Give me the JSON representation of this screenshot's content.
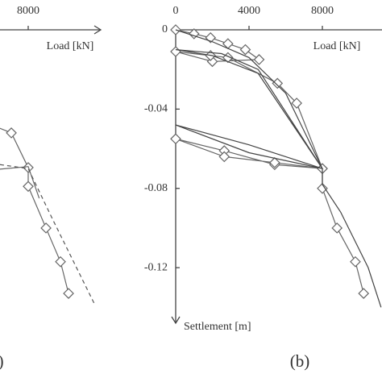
{
  "chart_data": [
    {
      "type": "line",
      "x_label": "Load [kN]",
      "panel_label": "(a)",
      "xlim": [
        0,
        12000
      ],
      "ylim": [
        -0.148,
        0
      ],
      "xticks": [
        8000
      ],
      "series": [
        {
          "color": "#666666",
          "style": "solid",
          "markers": true,
          "x": [
            5200,
            7080,
            8000,
            8000,
            8970,
            9760,
            10200
          ],
          "y": [
            -0.045,
            -0.052,
            -0.0695,
            -0.079,
            -0.1,
            -0.117,
            -0.133
          ]
        },
        {
          "color": "#666666",
          "style": "solid",
          "markers": false,
          "x": [
            5600,
            8000,
            8600
          ],
          "y": [
            -0.071,
            -0.069,
            -0.085
          ]
        },
        {
          "color": "#555555",
          "style": "dashed",
          "markers": false,
          "x": [
            6460,
            8000,
            9300,
            11650
          ],
          "y": [
            -0.068,
            -0.07,
            -0.095,
            -0.139
          ]
        }
      ]
    },
    {
      "type": "line",
      "x_label": "Load [kN]",
      "y_label": "Settlement [m]",
      "panel_label": "(b)",
      "xlim": [
        0,
        12000
      ],
      "ylim": [
        -0.148,
        0
      ],
      "xticks": [
        0,
        4000,
        8000
      ],
      "yticks": [
        0,
        -0.04,
        -0.08,
        -0.12
      ],
      "series": [
        {
          "color": "#666666",
          "style": "solid",
          "markers": true,
          "x": [
            0,
            1000,
            1900,
            2850,
            3800,
            4550,
            2000,
            0,
            1900,
            2850,
            5550,
            6600,
            8000,
            5400,
            2650,
            0,
            2650,
            5400,
            8000,
            8000,
            8800,
            9800,
            10250
          ],
          "y": [
            0,
            -0.002,
            -0.004,
            -0.007,
            -0.01,
            -0.015,
            -0.016,
            -0.011,
            -0.013,
            -0.014,
            -0.027,
            -0.037,
            -0.07,
            -0.068,
            -0.061,
            -0.055,
            -0.064,
            -0.067,
            -0.07,
            -0.08,
            -0.1,
            -0.117,
            -0.133
          ]
        },
        {
          "color": "#444444",
          "style": "solid",
          "markers": false,
          "x": [
            0,
            2000,
            4000,
            6000,
            8000,
            4500,
            2000,
            0,
            2500,
            4500,
            8000,
            4000,
            0,
            4000,
            8000,
            8000,
            9000,
            10500,
            11200
          ],
          "y": [
            0,
            -0.006,
            -0.014,
            -0.032,
            -0.07,
            -0.022,
            -0.013,
            -0.01,
            -0.012,
            -0.02,
            -0.07,
            -0.058,
            -0.048,
            -0.062,
            -0.07,
            -0.078,
            -0.092,
            -0.12,
            -0.14
          ]
        }
      ]
    }
  ]
}
